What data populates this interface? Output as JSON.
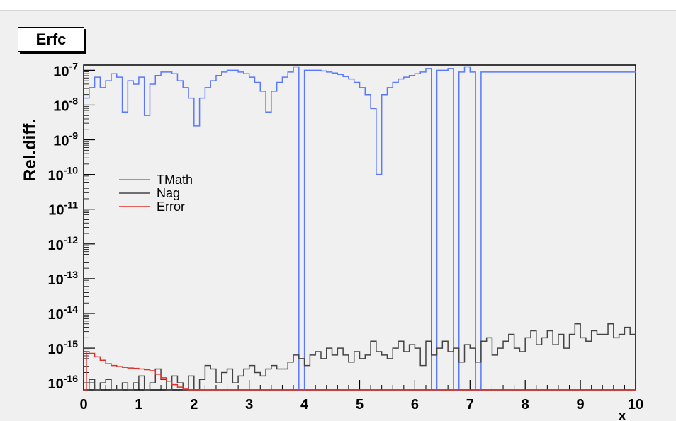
{
  "chart_data": {
    "type": "line",
    "title": "Erfc",
    "xlabel": "x",
    "ylabel": "Rel.diff.",
    "xlim": [
      0,
      10
    ],
    "ylim_log10": [
      -16.2,
      -6.85
    ],
    "yscale": "log",
    "x_ticks": [
      "0",
      "1",
      "2",
      "3",
      "4",
      "5",
      "6",
      "7",
      "8",
      "9",
      "10"
    ],
    "y_ticks": [
      {
        "base": "10",
        "exp": "-16"
      },
      {
        "base": "10",
        "exp": "-15"
      },
      {
        "base": "10",
        "exp": "-14"
      },
      {
        "base": "10",
        "exp": "-13"
      },
      {
        "base": "10",
        "exp": "-12"
      },
      {
        "base": "10",
        "exp": "-11"
      },
      {
        "base": "10",
        "exp": "-10"
      },
      {
        "base": "10",
        "exp": "-9"
      },
      {
        "base": "10",
        "exp": "-8"
      },
      {
        "base": "10",
        "exp": "-7"
      }
    ],
    "legend": {
      "placement": "upper-left"
    },
    "series": [
      {
        "name": "TMath",
        "color": "#5a78ff",
        "note_y": "log10 of relative difference",
        "x": [
          0,
          0.1,
          0.2,
          0.3,
          0.4,
          0.5,
          0.6,
          0.7,
          0.8,
          0.9,
          1.0,
          1.1,
          1.2,
          1.3,
          1.4,
          1.5,
          1.6,
          1.7,
          1.8,
          1.9,
          2.0,
          2.1,
          2.2,
          2.3,
          2.4,
          2.5,
          2.6,
          2.7,
          2.8,
          2.9,
          3.0,
          3.1,
          3.2,
          3.3,
          3.4,
          3.5,
          3.6,
          3.7,
          3.8,
          3.9,
          4.0,
          4.1,
          4.2,
          4.3,
          4.4,
          4.5,
          4.6,
          4.7,
          4.8,
          4.9,
          5.0,
          5.1,
          5.2,
          5.3,
          5.4,
          5.5,
          5.6,
          5.7,
          5.8,
          5.9,
          6.0,
          6.1,
          6.2,
          6.3,
          6.4,
          6.5,
          6.6,
          6.7,
          6.8,
          6.9,
          7.0,
          7.1,
          7.2,
          7.3,
          7.4,
          7.5,
          7.6,
          7.7,
          7.8,
          7.9,
          8.0,
          8.1,
          8.2,
          8.3,
          8.4,
          8.5,
          8.6,
          8.7,
          8.8,
          8.9,
          9.0,
          9.1,
          9.2,
          9.3,
          9.4,
          9.5,
          9.6,
          9.7,
          9.8,
          9.9
        ],
        "log10_y": [
          -7.8,
          -7.5,
          -7.2,
          -7.5,
          -7.3,
          -7.1,
          -7.2,
          -8.2,
          -7.3,
          -7.4,
          -7.2,
          -8.3,
          -7.4,
          -7.15,
          -7.05,
          -7.05,
          -7.1,
          -7.3,
          -7.5,
          -7.8,
          -8.6,
          -7.8,
          -7.5,
          -7.3,
          -7.15,
          -7.05,
          -7.0,
          -7.0,
          -7.05,
          -7.1,
          -7.2,
          -7.35,
          -7.6,
          -8.2,
          -7.6,
          -7.35,
          -7.2,
          -7.05,
          -6.9,
          -16.2,
          -7.0,
          -7.0,
          -7.0,
          -7.02,
          -7.05,
          -7.08,
          -7.12,
          -7.18,
          -7.25,
          -7.35,
          -7.5,
          -7.7,
          -8.1,
          -10.0,
          -7.7,
          -7.5,
          -7.35,
          -7.25,
          -7.2,
          -7.15,
          -7.1,
          -7.05,
          -6.95,
          -16.2,
          -7.0,
          -7.0,
          -6.95,
          -16.2,
          -7.05,
          -6.9,
          -7.05,
          -16.2,
          -7.05,
          -7.05,
          -7.05,
          -7.05,
          -7.05,
          -7.05,
          -7.05,
          -7.05,
          -7.05,
          -7.05,
          -7.05,
          -7.05,
          -7.05,
          -7.05,
          -7.05,
          -7.05,
          -7.05,
          -7.05,
          -7.05,
          -7.05,
          -7.05,
          -7.05,
          -7.05,
          -7.05,
          -7.05,
          -7.05,
          -7.05,
          -7.05
        ]
      },
      {
        "name": "Nag",
        "color": "#444444",
        "note_y": "log10 of relative difference",
        "x": [
          0,
          0.1,
          0.2,
          0.3,
          0.4,
          0.5,
          0.6,
          0.7,
          0.8,
          0.9,
          1.0,
          1.1,
          1.2,
          1.3,
          1.4,
          1.5,
          1.6,
          1.7,
          1.8,
          1.9,
          2.0,
          2.1,
          2.2,
          2.3,
          2.4,
          2.5,
          2.6,
          2.7,
          2.8,
          2.9,
          3.0,
          3.1,
          3.2,
          3.3,
          3.4,
          3.5,
          3.6,
          3.7,
          3.8,
          3.9,
          4.0,
          4.1,
          4.2,
          4.3,
          4.4,
          4.5,
          4.6,
          4.7,
          4.8,
          4.9,
          5.0,
          5.1,
          5.2,
          5.3,
          5.4,
          5.5,
          5.6,
          5.7,
          5.8,
          5.9,
          6.0,
          6.1,
          6.2,
          6.3,
          6.4,
          6.5,
          6.6,
          6.7,
          6.8,
          6.9,
          7.0,
          7.1,
          7.2,
          7.3,
          7.4,
          7.5,
          7.6,
          7.7,
          7.8,
          7.9,
          8.0,
          8.1,
          8.2,
          8.3,
          8.4,
          8.5,
          8.6,
          8.7,
          8.8,
          8.9,
          9.0,
          9.1,
          9.2,
          9.3,
          9.4,
          9.5,
          9.6,
          9.7,
          9.8,
          9.9
        ],
        "log10_y": [
          -16.2,
          -15.9,
          -16.2,
          -16.0,
          -15.9,
          -16.2,
          -16.2,
          -16.0,
          -16.2,
          -16.0,
          -15.8,
          -16.2,
          -16.0,
          -15.6,
          -15.9,
          -16.2,
          -15.8,
          -16.0,
          -16.2,
          -15.8,
          -16.2,
          -15.9,
          -15.5,
          -15.6,
          -16.0,
          -15.7,
          -15.6,
          -16.0,
          -15.8,
          -15.6,
          -15.5,
          -15.7,
          -15.8,
          -15.6,
          -15.5,
          -15.6,
          -15.6,
          -15.4,
          -15.2,
          -15.3,
          -15.5,
          -15.2,
          -15.1,
          -15.3,
          -15.0,
          -15.2,
          -15.0,
          -15.2,
          -15.4,
          -15.1,
          -15.3,
          -15.2,
          -14.8,
          -15.1,
          -15.2,
          -15.3,
          -15.0,
          -14.8,
          -15.1,
          -14.9,
          -15.0,
          -15.5,
          -14.8,
          -15.2,
          -15.0,
          -14.8,
          -15.1,
          -15.0,
          -15.4,
          -14.9,
          -15.0,
          -15.4,
          -14.8,
          -14.7,
          -15.2,
          -15.0,
          -14.8,
          -14.6,
          -15.0,
          -15.1,
          -14.7,
          -14.5,
          -14.9,
          -14.7,
          -14.5,
          -14.9,
          -14.6,
          -15.0,
          -14.6,
          -14.3,
          -14.7,
          -14.8,
          -14.5,
          -14.6,
          -14.6,
          -14.3,
          -14.7,
          -14.6,
          -14.4,
          -14.6
        ],
        "segments_note": ""
      },
      {
        "name": "Error",
        "color": "#e0302a",
        "note_y": "log10 of relative difference",
        "x": [
          0,
          0.05,
          0.1,
          0.2,
          0.3,
          0.4,
          0.5,
          0.6,
          0.7,
          0.8,
          0.9,
          1.0,
          1.1,
          1.2,
          1.3,
          1.4,
          1.5,
          1.6,
          1.7,
          1.8,
          1.9,
          2.0,
          2.5,
          3.0,
          4.0,
          5.0,
          6.0,
          7.0,
          8.0,
          9.0,
          9.9
        ],
        "log10_y": [
          -16.2,
          -15.1,
          -15.15,
          -15.25,
          -15.35,
          -15.45,
          -15.5,
          -15.53,
          -15.55,
          -15.57,
          -15.58,
          -15.6,
          -15.62,
          -15.65,
          -15.75,
          -15.85,
          -15.95,
          -16.05,
          -16.12,
          -16.18,
          -16.2,
          -16.2,
          -16.2,
          -16.2,
          -16.2,
          -16.2,
          -16.2,
          -16.2,
          -16.2,
          -16.2,
          -16.2
        ]
      }
    ]
  }
}
